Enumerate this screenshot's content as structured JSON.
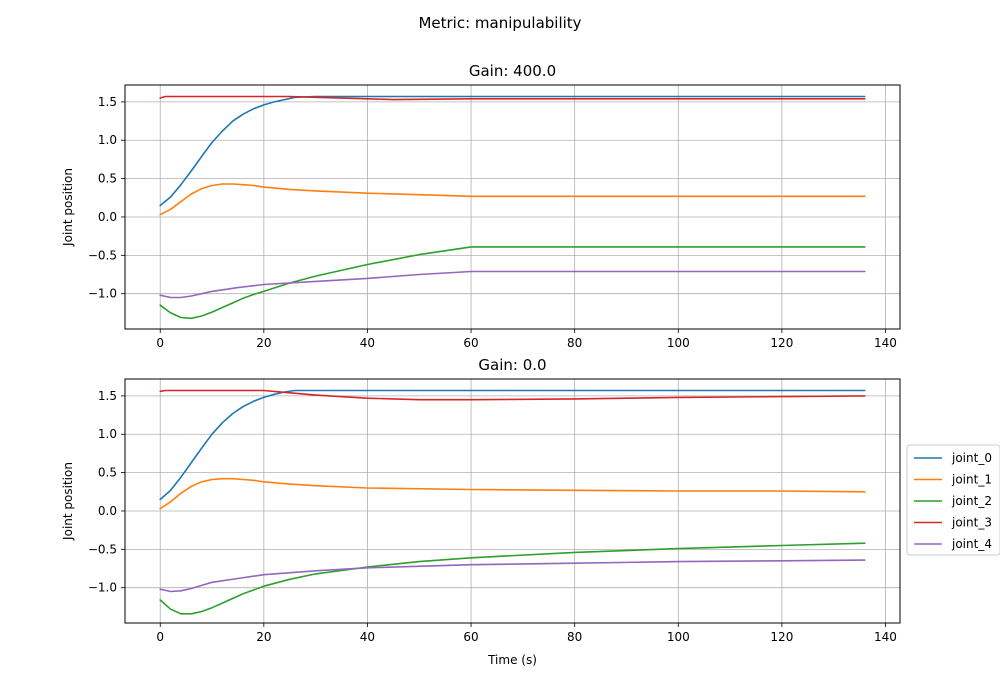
{
  "suptitle": "Metric: manipulability",
  "legend": {
    "placement": "center-right",
    "entries": [
      "joint_0",
      "joint_1",
      "joint_2",
      "joint_3",
      "joint_4"
    ]
  },
  "colors": {
    "joint_0": "#1f77b4",
    "joint_1": "#ff7f0e",
    "joint_2": "#2ca02c",
    "joint_3": "#d62728",
    "joint_4": "#9467bd"
  },
  "chart_data": [
    {
      "type": "line",
      "title": "Gain: 400.0",
      "xlabel": "",
      "ylabel": "Joint position",
      "xlim": [
        -6.8,
        142.8
      ],
      "ylim": [
        -1.46,
        1.72
      ],
      "xticks": [
        0,
        20,
        40,
        60,
        80,
        100,
        120,
        140
      ],
      "yticks": [
        -1.0,
        -0.5,
        0.0,
        0.5,
        1.0,
        1.5
      ],
      "grid": true,
      "series": [
        {
          "name": "joint_0",
          "x": [
            0,
            2,
            4,
            6,
            8,
            10,
            12,
            14,
            16,
            18,
            20,
            22,
            24,
            26,
            30,
            40,
            60,
            80,
            100,
            120,
            136
          ],
          "y": [
            0.15,
            0.26,
            0.42,
            0.6,
            0.79,
            0.97,
            1.12,
            1.25,
            1.34,
            1.41,
            1.46,
            1.5,
            1.53,
            1.56,
            1.57,
            1.57,
            1.57,
            1.57,
            1.57,
            1.57,
            1.57
          ]
        },
        {
          "name": "joint_1",
          "x": [
            0,
            2,
            4,
            6,
            8,
            10,
            12,
            14,
            16,
            18,
            20,
            25,
            30,
            40,
            50,
            60,
            80,
            100,
            120,
            136
          ],
          "y": [
            0.03,
            0.1,
            0.2,
            0.3,
            0.37,
            0.41,
            0.43,
            0.43,
            0.42,
            0.41,
            0.39,
            0.36,
            0.34,
            0.31,
            0.29,
            0.27,
            0.27,
            0.27,
            0.27,
            0.27
          ]
        },
        {
          "name": "joint_2",
          "x": [
            0,
            2,
            4,
            6,
            8,
            10,
            12,
            14,
            16,
            18,
            20,
            25,
            30,
            40,
            50,
            60,
            80,
            100,
            120,
            136
          ],
          "y": [
            -1.15,
            -1.25,
            -1.31,
            -1.32,
            -1.29,
            -1.24,
            -1.18,
            -1.12,
            -1.06,
            -1.01,
            -0.97,
            -0.86,
            -0.77,
            -0.62,
            -0.49,
            -0.39,
            -0.39,
            -0.39,
            -0.39,
            -0.39
          ]
        },
        {
          "name": "joint_3",
          "x": [
            0,
            1,
            5,
            10,
            20,
            25,
            30,
            40,
            45,
            60,
            80,
            100,
            120,
            136
          ],
          "y": [
            1.55,
            1.57,
            1.57,
            1.57,
            1.57,
            1.57,
            1.56,
            1.54,
            1.53,
            1.54,
            1.54,
            1.54,
            1.54,
            1.54
          ]
        },
        {
          "name": "joint_4",
          "x": [
            0,
            2,
            4,
            6,
            8,
            10,
            15,
            20,
            30,
            40,
            50,
            60,
            80,
            100,
            120,
            136
          ],
          "y": [
            -1.02,
            -1.05,
            -1.05,
            -1.03,
            -1.0,
            -0.97,
            -0.92,
            -0.88,
            -0.84,
            -0.8,
            -0.75,
            -0.71,
            -0.71,
            -0.71,
            -0.71,
            -0.71
          ]
        }
      ]
    },
    {
      "type": "line",
      "title": "Gain: 0.0",
      "xlabel": "Time (s)",
      "ylabel": "Joint position",
      "xlim": [
        -6.8,
        142.8
      ],
      "ylim": [
        -1.46,
        1.72
      ],
      "xticks": [
        0,
        20,
        40,
        60,
        80,
        100,
        120,
        140
      ],
      "yticks": [
        -1.0,
        -0.5,
        0.0,
        0.5,
        1.0,
        1.5
      ],
      "grid": true,
      "series": [
        {
          "name": "joint_0",
          "x": [
            0,
            2,
            4,
            6,
            8,
            10,
            12,
            14,
            16,
            18,
            20,
            22,
            24,
            26,
            30,
            40,
            60,
            80,
            100,
            120,
            136
          ],
          "y": [
            0.15,
            0.27,
            0.44,
            0.63,
            0.82,
            1.0,
            1.15,
            1.27,
            1.36,
            1.43,
            1.48,
            1.52,
            1.55,
            1.57,
            1.57,
            1.57,
            1.57,
            1.57,
            1.57,
            1.57,
            1.57
          ]
        },
        {
          "name": "joint_1",
          "x": [
            0,
            2,
            4,
            6,
            8,
            10,
            12,
            14,
            16,
            18,
            20,
            25,
            30,
            40,
            60,
            80,
            100,
            120,
            136
          ],
          "y": [
            0.03,
            0.12,
            0.23,
            0.32,
            0.38,
            0.41,
            0.42,
            0.42,
            0.41,
            0.4,
            0.38,
            0.35,
            0.33,
            0.3,
            0.28,
            0.27,
            0.26,
            0.26,
            0.25
          ]
        },
        {
          "name": "joint_2",
          "x": [
            0,
            2,
            4,
            6,
            8,
            10,
            12,
            14,
            16,
            18,
            20,
            25,
            30,
            40,
            50,
            60,
            80,
            100,
            120,
            136
          ],
          "y": [
            -1.16,
            -1.28,
            -1.34,
            -1.34,
            -1.31,
            -1.26,
            -1.2,
            -1.14,
            -1.08,
            -1.03,
            -0.98,
            -0.89,
            -0.82,
            -0.73,
            -0.66,
            -0.61,
            -0.54,
            -0.49,
            -0.45,
            -0.42
          ]
        },
        {
          "name": "joint_3",
          "x": [
            0,
            1,
            5,
            10,
            20,
            25,
            30,
            40,
            50,
            60,
            80,
            100,
            120,
            136
          ],
          "y": [
            1.56,
            1.57,
            1.57,
            1.57,
            1.57,
            1.54,
            1.51,
            1.47,
            1.45,
            1.45,
            1.46,
            1.48,
            1.49,
            1.5
          ]
        },
        {
          "name": "joint_4",
          "x": [
            0,
            2,
            4,
            6,
            8,
            10,
            15,
            20,
            30,
            40,
            60,
            80,
            100,
            120,
            136
          ],
          "y": [
            -1.02,
            -1.05,
            -1.04,
            -1.01,
            -0.97,
            -0.93,
            -0.88,
            -0.83,
            -0.78,
            -0.74,
            -0.7,
            -0.68,
            -0.66,
            -0.65,
            -0.64
          ]
        }
      ]
    }
  ]
}
